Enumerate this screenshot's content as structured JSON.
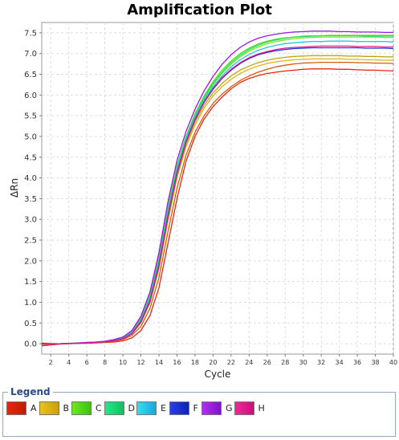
{
  "chart_data": {
    "type": "line",
    "title": "Amplification Plot",
    "xlabel": "Cycle",
    "ylabel": "ΔRn",
    "xlim": [
      1,
      40
    ],
    "ylim": [
      -0.25,
      7.75
    ],
    "x_ticks": [
      2,
      4,
      6,
      8,
      10,
      12,
      14,
      16,
      18,
      20,
      22,
      24,
      26,
      28,
      30,
      32,
      34,
      36,
      38,
      40
    ],
    "y_ticks": [
      0.0,
      0.5,
      1.0,
      1.5,
      2.0,
      2.5,
      3.0,
      3.5,
      4.0,
      4.5,
      5.0,
      5.5,
      6.0,
      6.5,
      7.0,
      7.5
    ],
    "y_tick_labels": [
      "0.0",
      "0.5",
      "1.0",
      "1.5",
      "2.0",
      "2.5",
      "3.0",
      "3.5",
      "4.0",
      "4.5",
      "5.0",
      "5.5",
      "6.0",
      "6.5",
      "7.0",
      "7.5"
    ],
    "grid": true,
    "legend_title": "Legend",
    "legend_position": "bottom",
    "x": [
      1,
      2,
      3,
      4,
      5,
      6,
      7,
      8,
      9,
      10,
      11,
      12,
      13,
      14,
      15,
      16,
      17,
      18,
      19,
      20,
      21,
      22,
      23,
      24,
      25,
      26,
      27,
      28,
      29,
      30,
      31,
      32,
      33,
      34,
      35,
      36,
      37,
      38,
      39,
      40
    ],
    "series": [
      {
        "name": "A",
        "color": "#e8260c",
        "values": [
          -0.05,
          -0.03,
          -0.01,
          0.0,
          0.01,
          0.01,
          0.02,
          0.03,
          0.04,
          0.07,
          0.14,
          0.32,
          0.68,
          1.35,
          2.42,
          3.5,
          4.4,
          5.0,
          5.42,
          5.72,
          5.95,
          6.15,
          6.3,
          6.4,
          6.47,
          6.52,
          6.55,
          6.58,
          6.6,
          6.62,
          6.63,
          6.63,
          6.63,
          6.62,
          6.62,
          6.61,
          6.6,
          6.6,
          6.59,
          6.58
        ]
      },
      {
        "name": "A",
        "color": "#d45a10",
        "values": [
          -0.02,
          -0.01,
          0.0,
          0.0,
          0.01,
          0.02,
          0.03,
          0.04,
          0.06,
          0.1,
          0.2,
          0.42,
          0.85,
          1.6,
          2.7,
          3.75,
          4.55,
          5.1,
          5.5,
          5.8,
          6.02,
          6.2,
          6.35,
          6.46,
          6.55,
          6.62,
          6.68,
          6.72,
          6.75,
          6.77,
          6.78,
          6.79,
          6.79,
          6.79,
          6.79,
          6.78,
          6.78,
          6.77,
          6.77,
          6.76
        ]
      },
      {
        "name": "B",
        "color": "#d8b512",
        "values": [
          0.0,
          0.0,
          0.0,
          0.01,
          0.01,
          0.02,
          0.03,
          0.05,
          0.07,
          0.12,
          0.24,
          0.5,
          0.98,
          1.8,
          2.95,
          4.0,
          4.75,
          5.28,
          5.68,
          5.98,
          6.2,
          6.38,
          6.52,
          6.62,
          6.7,
          6.76,
          6.8,
          6.83,
          6.85,
          6.86,
          6.87,
          6.87,
          6.87,
          6.87,
          6.86,
          6.86,
          6.85,
          6.85,
          6.84,
          6.84
        ]
      },
      {
        "name": "B",
        "color": "#c9a210",
        "values": [
          0.02,
          0.01,
          0.0,
          0.01,
          0.02,
          0.02,
          0.03,
          0.05,
          0.08,
          0.13,
          0.26,
          0.55,
          1.05,
          1.9,
          3.05,
          4.08,
          4.82,
          5.35,
          5.75,
          6.05,
          6.28,
          6.46,
          6.6,
          6.7,
          6.78,
          6.84,
          6.88,
          6.91,
          6.93,
          6.94,
          6.95,
          6.95,
          6.95,
          6.95,
          6.94,
          6.94,
          6.93,
          6.93,
          6.92,
          6.92
        ]
      },
      {
        "name": "C",
        "color": "#5ed812",
        "values": [
          0.0,
          0.0,
          0.0,
          0.01,
          0.01,
          0.02,
          0.04,
          0.06,
          0.09,
          0.15,
          0.3,
          0.62,
          1.18,
          2.1,
          3.3,
          4.3,
          5.0,
          5.55,
          5.98,
          6.32,
          6.6,
          6.82,
          7.0,
          7.13,
          7.23,
          7.3,
          7.35,
          7.38,
          7.4,
          7.42,
          7.43,
          7.43,
          7.44,
          7.44,
          7.44,
          7.44,
          7.44,
          7.44,
          7.44,
          7.44
        ]
      },
      {
        "name": "C",
        "color": "#78e818",
        "values": [
          0.01,
          0.0,
          0.0,
          0.01,
          0.02,
          0.03,
          0.04,
          0.06,
          0.09,
          0.14,
          0.28,
          0.58,
          1.12,
          2.02,
          3.22,
          4.25,
          4.96,
          5.5,
          5.92,
          6.25,
          6.52,
          6.74,
          6.92,
          7.06,
          7.16,
          7.24,
          7.29,
          7.33,
          7.36,
          7.38,
          7.39,
          7.4,
          7.4,
          7.4,
          7.4,
          7.4,
          7.4,
          7.4,
          7.39,
          7.39
        ]
      },
      {
        "name": "D",
        "color": "#1fe07a",
        "values": [
          -0.01,
          0.0,
          0.0,
          0.01,
          0.01,
          0.02,
          0.03,
          0.05,
          0.08,
          0.14,
          0.28,
          0.6,
          1.15,
          2.05,
          3.25,
          4.27,
          4.98,
          5.52,
          5.95,
          6.28,
          6.55,
          6.78,
          6.96,
          7.1,
          7.2,
          7.28,
          7.33,
          7.37,
          7.4,
          7.41,
          7.42,
          7.43,
          7.43,
          7.43,
          7.43,
          7.43,
          7.42,
          7.42,
          7.42,
          7.42
        ]
      },
      {
        "name": "E",
        "color": "#22c8e8",
        "values": [
          0.0,
          0.0,
          0.0,
          0.01,
          0.01,
          0.02,
          0.03,
          0.05,
          0.08,
          0.13,
          0.26,
          0.56,
          1.08,
          1.96,
          3.15,
          4.18,
          4.92,
          5.46,
          5.88,
          6.2,
          6.46,
          6.68,
          6.85,
          6.98,
          7.08,
          7.15,
          7.2,
          7.24,
          7.26,
          7.28,
          7.29,
          7.29,
          7.3,
          7.3,
          7.3,
          7.29,
          7.29,
          7.29,
          7.29,
          7.28
        ]
      },
      {
        "name": "F",
        "color": "#2030d8",
        "values": [
          0.01,
          0.0,
          0.0,
          0.01,
          0.01,
          0.02,
          0.03,
          0.05,
          0.07,
          0.12,
          0.24,
          0.52,
          1.02,
          1.88,
          3.06,
          4.1,
          4.86,
          5.4,
          5.82,
          6.14,
          6.4,
          6.6,
          6.76,
          6.88,
          6.97,
          7.03,
          7.07,
          7.1,
          7.12,
          7.13,
          7.14,
          7.14,
          7.14,
          7.14,
          7.14,
          7.14,
          7.13,
          7.13,
          7.13,
          7.12
        ]
      },
      {
        "name": "G",
        "color": "#9a18e0",
        "values": [
          0.0,
          0.0,
          0.0,
          0.01,
          0.02,
          0.03,
          0.04,
          0.06,
          0.1,
          0.16,
          0.32,
          0.66,
          1.25,
          2.2,
          3.42,
          4.42,
          5.12,
          5.66,
          6.1,
          6.45,
          6.74,
          6.97,
          7.15,
          7.28,
          7.37,
          7.43,
          7.47,
          7.5,
          7.52,
          7.53,
          7.54,
          7.54,
          7.54,
          7.53,
          7.53,
          7.52,
          7.52,
          7.52,
          7.51,
          7.51
        ]
      },
      {
        "name": "H",
        "color": "#e01890",
        "values": [
          0.0,
          0.0,
          0.0,
          0.01,
          0.01,
          0.02,
          0.03,
          0.05,
          0.07,
          0.12,
          0.25,
          0.54,
          1.05,
          1.92,
          3.1,
          4.14,
          4.88,
          5.42,
          5.84,
          6.16,
          6.42,
          6.62,
          6.78,
          6.9,
          6.99,
          7.05,
          7.1,
          7.13,
          7.15,
          7.16,
          7.17,
          7.18,
          7.18,
          7.18,
          7.18,
          7.17,
          7.17,
          7.17,
          7.16,
          7.16
        ]
      }
    ]
  },
  "legend": {
    "title": "Legend",
    "items": [
      {
        "label": "A",
        "color_from": "#e8260c",
        "color_to": "#c81808"
      },
      {
        "label": "B",
        "color_from": "#e8c418",
        "color_to": "#c8a010"
      },
      {
        "label": "C",
        "color_from": "#6ee81a",
        "color_to": "#40c010"
      },
      {
        "label": "D",
        "color_from": "#22e888",
        "color_to": "#10c060"
      },
      {
        "label": "E",
        "color_from": "#30e0f0",
        "color_to": "#18a8d8"
      },
      {
        "label": "F",
        "color_from": "#2840e8",
        "color_to": "#1020b8"
      },
      {
        "label": "G",
        "color_from": "#b030f0",
        "color_to": "#8010d0"
      },
      {
        "label": "H",
        "color_from": "#f02898",
        "color_to": "#c81078"
      }
    ]
  }
}
